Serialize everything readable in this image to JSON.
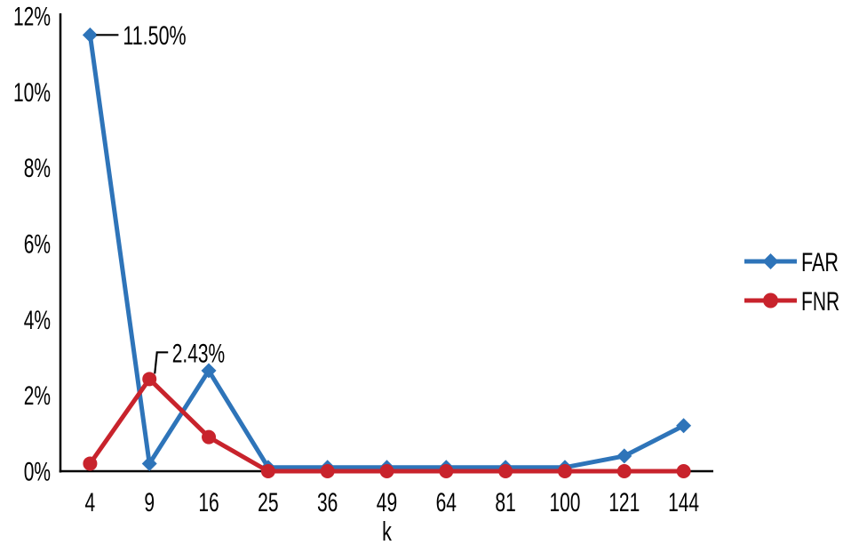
{
  "chart_data": {
    "type": "line",
    "title": "",
    "xlabel": "k",
    "ylabel": "",
    "categories": [
      "4",
      "9",
      "16",
      "25",
      "36",
      "49",
      "64",
      "81",
      "100",
      "121",
      "144"
    ],
    "y_tick_labels": [
      "0%",
      "2%",
      "4%",
      "6%",
      "8%",
      "10%",
      "12%"
    ],
    "ylim": [
      0,
      12
    ],
    "y_step": 2,
    "grid": false,
    "legend_position": "right",
    "series": [
      {
        "name": "FAR",
        "color": "#2E74B9",
        "marker": "diamond",
        "values": [
          11.5,
          0.2,
          2.65,
          0.1,
          0.1,
          0.1,
          0.1,
          0.1,
          0.1,
          0.4,
          1.2
        ]
      },
      {
        "name": "FNR",
        "color": "#C8232C",
        "marker": "circle",
        "values": [
          0.2,
          2.43,
          0.9,
          0.0,
          0.0,
          0.0,
          0.0,
          0.0,
          0.0,
          0.0,
          0.0
        ]
      }
    ],
    "annotations": [
      {
        "series": "FAR",
        "category": "4",
        "label": "11.50%",
        "leader": "right"
      },
      {
        "series": "FNR",
        "category": "9",
        "label": "2.43%",
        "leader": "elbow-up"
      }
    ]
  },
  "colors": {
    "far": "#2E74B9",
    "fnr": "#C8232C",
    "axis": "#000000",
    "text": "#000000",
    "background": "#FFFFFF"
  }
}
